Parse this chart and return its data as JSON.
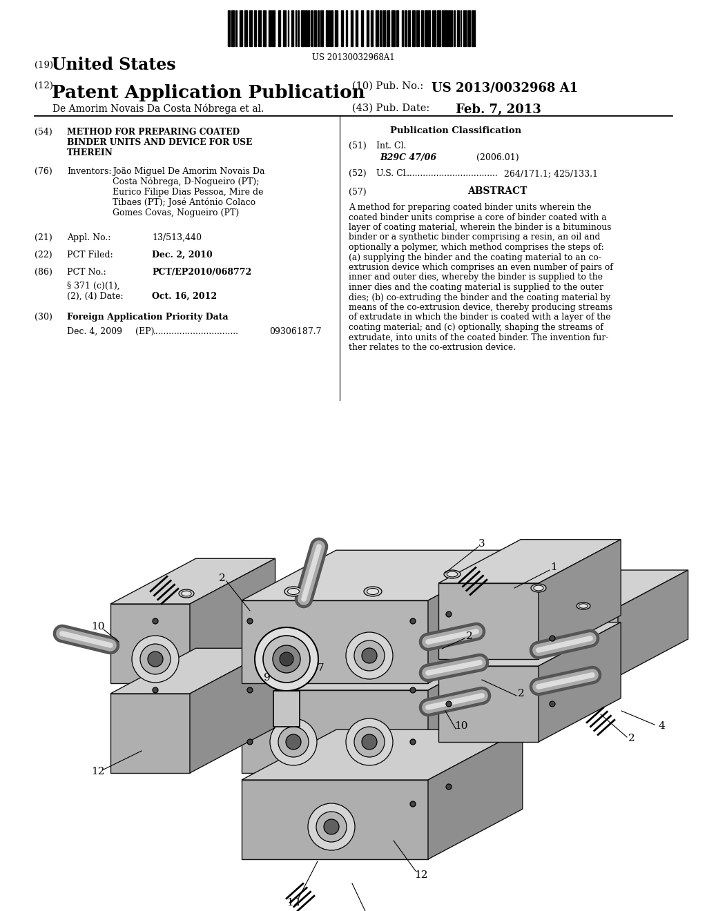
{
  "background_color": "#ffffff",
  "text_color": "#000000",
  "barcode_text": "US 20130032968A1",
  "header": {
    "country_label": "(19)",
    "country": "United States",
    "type_label": "(12)",
    "type": "Patent Application Publication",
    "pub_no_label": "(10) Pub. No.:",
    "pub_no": "US 2013/0032968 A1",
    "inventors_line": "De Amorim Novais Da Costa Nóbrega et al.",
    "pub_date_label": "(43) Pub. Date:",
    "pub_date": "Feb. 7, 2013"
  },
  "left_col": {
    "title_num": "(54)",
    "title_line1": "METHOD FOR PREPARING COATED",
    "title_line2": "BINDER UNITS AND DEVICE FOR USE",
    "title_line3": "THEREIN",
    "inv_num": "(76)",
    "inv_label": "Inventors:",
    "inv_line1": "João Miguel De Amorim Novais Da",
    "inv_line2": "Costa Nóbrega, D-Nogueiro (PT);",
    "inv_line3": "Eurico Filipe Dias Pessoa, Mire de",
    "inv_line4": "Tibaes (PT); José António Colaco",
    "inv_line5": "Gomes Covas, Nogueiro (PT)",
    "appl_num": "(21)",
    "appl_label": "Appl. No.:",
    "appl_val": "13/513,440",
    "pct_filed_num": "(22)",
    "pct_filed_label": "PCT Filed:",
    "pct_filed_val": "Dec. 2, 2010",
    "pct_no_num": "(86)",
    "pct_no_label": "PCT No.:",
    "pct_no_val": "PCT/EP2010/068772",
    "para_371a": "§ 371 (c)(1),",
    "para_371b": "(2), (4) Date:",
    "para_371_val": "Oct. 16, 2012",
    "foreign_num": "(30)",
    "foreign_label": "Foreign Application Priority Data",
    "foreign_date": "Dec. 4, 2009",
    "foreign_country": "(EP)",
    "foreign_dots": "................................",
    "foreign_val": "09306187.7"
  },
  "right_col": {
    "pub_class": "Publication Classification",
    "int_cl_num": "(51)",
    "int_cl_label": "Int. Cl.",
    "int_cl_val": "B29C 47/06",
    "int_cl_year": "(2006.01)",
    "us_cl_num": "(52)",
    "us_cl_label": "U.S. Cl.",
    "us_cl_dots": "..................................",
    "us_cl_val": "264/171.1; 425/133.1",
    "abs_num": "(57)",
    "abs_label": "ABSTRACT",
    "abs_lines": [
      "A method for preparing coated binder units wherein the",
      "coated binder units comprise a core of binder coated with a",
      "layer of coating material, wherein the binder is a bituminous",
      "binder or a synthetic binder comprising a resin, an oil and",
      "optionally a polymer, which method comprises the steps of:",
      "(a) supplying the binder and the coating material to an co-",
      "extrusion device which comprises an even number of pairs of",
      "inner and outer dies, whereby the binder is supplied to the",
      "inner dies and the coating material is supplied to the outer",
      "dies; (b) co-extruding the binder and the coating material by",
      "means of the co-extrusion device, thereby producing streams",
      "of extrudate in which the binder is coated with a layer of the",
      "coating material; and (c) optionally, shaping the streams of",
      "extrudate, into units of the coated binder. The invention fur-",
      "ther relates to the co-extrusion device."
    ]
  }
}
